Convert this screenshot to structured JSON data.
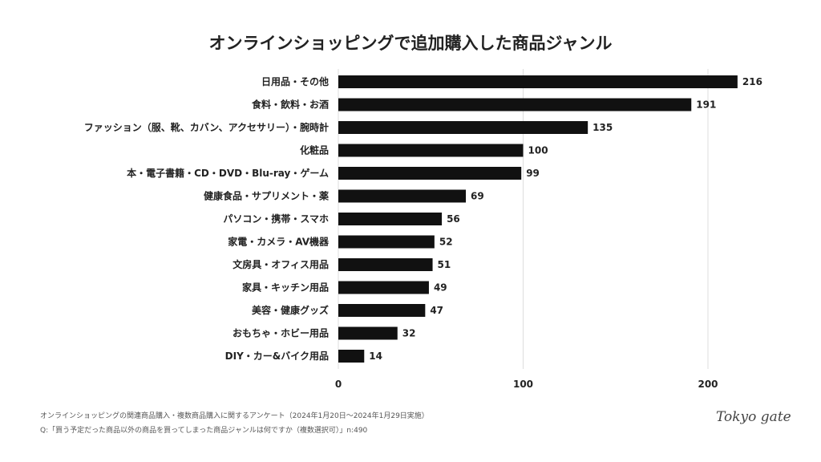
{
  "chart_data": {
    "type": "bar",
    "orientation": "horizontal",
    "title": "オンラインショッピングで追加購入した商品ジャンル",
    "categories": [
      "日用品・その他",
      "食料・飲料・お酒",
      "ファッション（服、靴、カバン、アクセサリー）・腕時計",
      "化粧品",
      "本・電子書籍・CD・DVD・Blu-ray・ゲーム",
      "健康食品・サプリメント・薬",
      "パソコン・携帯・スマホ",
      "家電・カメラ・AV機器",
      "文房具・オフィス用品",
      "家具・キッチン用品",
      "美容・健康グッズ",
      "おもちゃ・ホビー用品",
      "DIY・カー&バイク用品"
    ],
    "values": [
      216,
      191,
      135,
      100,
      99,
      69,
      56,
      52,
      51,
      49,
      47,
      32,
      14
    ],
    "xlim": [
      0,
      230
    ],
    "xticks": [
      0,
      100,
      200
    ],
    "grid": true,
    "bar_color": "#111111",
    "data_labels": true
  },
  "footer": {
    "source": "オンラインショッピングの関連商品購入・複数商品購入に関するアンケート（2024年1月20日〜2024年1月29日実施）",
    "question": "Q:「買う予定だった商品以外の商品を買ってしまった商品ジャンルは何ですか（複数選択可）」n:490"
  },
  "logo": "Tokyo gate"
}
